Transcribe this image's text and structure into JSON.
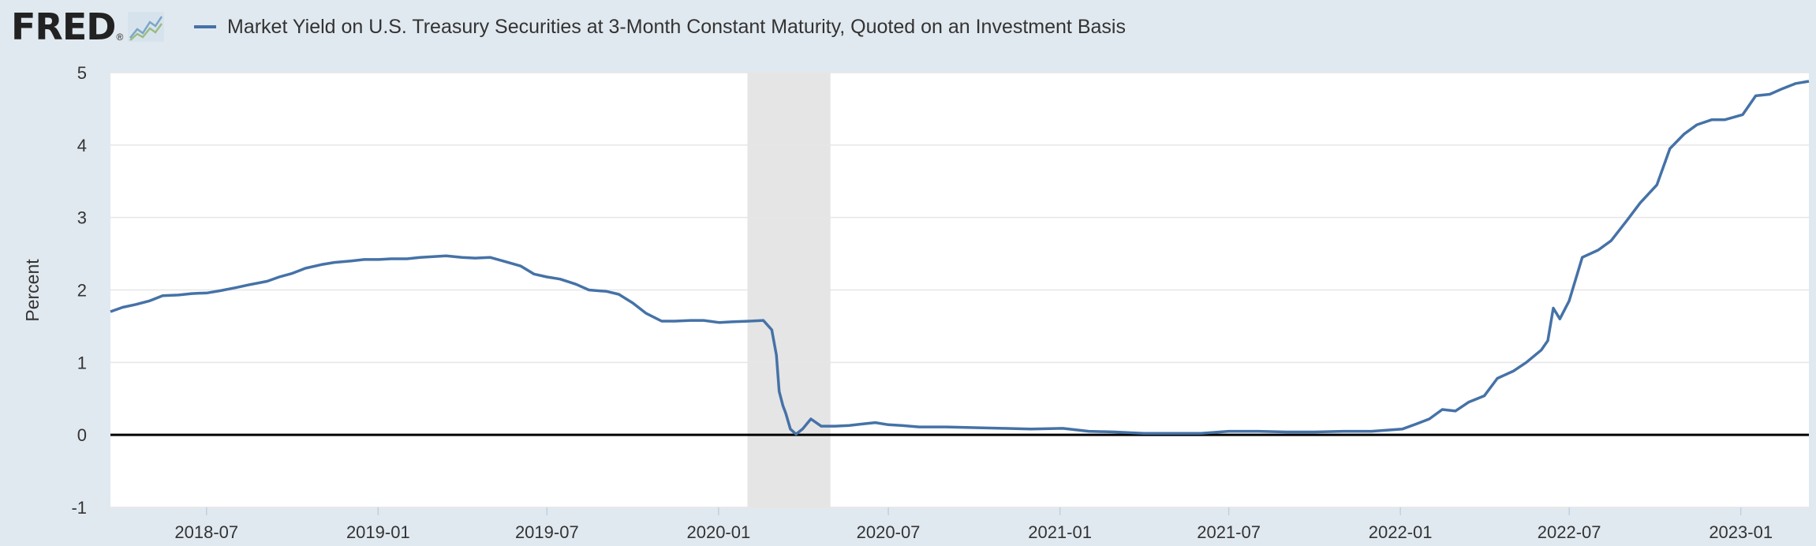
{
  "header": {
    "logo_text": "FRED",
    "logo_mark": "®",
    "logo_icon": "line-chart-icon"
  },
  "colors": {
    "series": "#4572a7",
    "recession": "#e5e5e5",
    "zero_line": "#000000",
    "grid": "#e6e6e6",
    "background": "#e1e9f0"
  },
  "chart_data": {
    "type": "line",
    "title": "",
    "xlabel": "",
    "ylabel": "Percent",
    "ylim": [
      -1,
      5
    ],
    "xlim": [
      "2018-03-20",
      "2023-03-15"
    ],
    "yticks": [
      -1,
      0,
      1,
      2,
      3,
      4,
      5
    ],
    "xticks": [
      "2018-07",
      "2019-01",
      "2019-07",
      "2020-01",
      "2020-07",
      "2021-01",
      "2021-07",
      "2022-01",
      "2022-07",
      "2023-01"
    ],
    "grid": true,
    "legend_position": "top-left",
    "recession": {
      "start": "2020-02-01",
      "end": "2020-04-30"
    },
    "series": [
      {
        "name": "Market Yield on U.S. Treasury Securities at 3-Month Constant Maturity, Quoted on an Investment Basis",
        "points": [
          [
            "2018-03-20",
            1.7
          ],
          [
            "2018-04-02",
            1.76
          ],
          [
            "2018-04-16",
            1.8
          ],
          [
            "2018-05-01",
            1.85
          ],
          [
            "2018-05-15",
            1.92
          ],
          [
            "2018-06-01",
            1.93
          ],
          [
            "2018-06-15",
            1.95
          ],
          [
            "2018-07-02",
            1.96
          ],
          [
            "2018-07-16",
            1.99
          ],
          [
            "2018-08-01",
            2.03
          ],
          [
            "2018-08-15",
            2.07
          ],
          [
            "2018-09-04",
            2.12
          ],
          [
            "2018-09-17",
            2.18
          ],
          [
            "2018-10-01",
            2.23
          ],
          [
            "2018-10-15",
            2.3
          ],
          [
            "2018-11-01",
            2.35
          ],
          [
            "2018-11-15",
            2.38
          ],
          [
            "2018-12-03",
            2.4
          ],
          [
            "2018-12-17",
            2.42
          ],
          [
            "2019-01-02",
            2.42
          ],
          [
            "2019-01-15",
            2.43
          ],
          [
            "2019-02-01",
            2.43
          ],
          [
            "2019-02-15",
            2.45
          ],
          [
            "2019-03-01",
            2.46
          ],
          [
            "2019-03-15",
            2.47
          ],
          [
            "2019-04-01",
            2.45
          ],
          [
            "2019-04-15",
            2.44
          ],
          [
            "2019-05-01",
            2.45
          ],
          [
            "2019-05-15",
            2.4
          ],
          [
            "2019-06-03",
            2.33
          ],
          [
            "2019-06-17",
            2.22
          ],
          [
            "2019-07-01",
            2.18
          ],
          [
            "2019-07-15",
            2.15
          ],
          [
            "2019-08-01",
            2.08
          ],
          [
            "2019-08-15",
            2.0
          ],
          [
            "2019-09-03",
            1.98
          ],
          [
            "2019-09-16",
            1.94
          ],
          [
            "2019-10-01",
            1.82
          ],
          [
            "2019-10-15",
            1.68
          ],
          [
            "2019-11-01",
            1.57
          ],
          [
            "2019-11-15",
            1.57
          ],
          [
            "2019-12-02",
            1.58
          ],
          [
            "2019-12-16",
            1.58
          ],
          [
            "2020-01-02",
            1.55
          ],
          [
            "2020-01-15",
            1.56
          ],
          [
            "2020-02-03",
            1.57
          ],
          [
            "2020-02-18",
            1.58
          ],
          [
            "2020-02-27",
            1.45
          ],
          [
            "2020-03-03",
            1.1
          ],
          [
            "2020-03-06",
            0.6
          ],
          [
            "2020-03-10",
            0.4
          ],
          [
            "2020-03-13",
            0.3
          ],
          [
            "2020-03-18",
            0.08
          ],
          [
            "2020-03-24",
            0.01
          ],
          [
            "2020-03-31",
            0.08
          ],
          [
            "2020-04-09",
            0.22
          ],
          [
            "2020-04-20",
            0.12
          ],
          [
            "2020-05-05",
            0.12
          ],
          [
            "2020-05-20",
            0.13
          ],
          [
            "2020-06-03",
            0.15
          ],
          [
            "2020-06-17",
            0.17
          ],
          [
            "2020-07-01",
            0.14
          ],
          [
            "2020-07-15",
            0.13
          ],
          [
            "2020-08-03",
            0.11
          ],
          [
            "2020-09-01",
            0.11
          ],
          [
            "2020-10-01",
            0.1
          ],
          [
            "2020-11-02",
            0.09
          ],
          [
            "2020-12-01",
            0.08
          ],
          [
            "2021-01-04",
            0.09
          ],
          [
            "2021-02-01",
            0.05
          ],
          [
            "2021-03-01",
            0.04
          ],
          [
            "2021-04-01",
            0.02
          ],
          [
            "2021-05-03",
            0.02
          ],
          [
            "2021-06-01",
            0.02
          ],
          [
            "2021-07-01",
            0.05
          ],
          [
            "2021-08-02",
            0.05
          ],
          [
            "2021-09-01",
            0.04
          ],
          [
            "2021-10-01",
            0.04
          ],
          [
            "2021-11-01",
            0.05
          ],
          [
            "2021-12-01",
            0.05
          ],
          [
            "2022-01-03",
            0.08
          ],
          [
            "2022-01-18",
            0.15
          ],
          [
            "2022-02-01",
            0.22
          ],
          [
            "2022-02-15",
            0.35
          ],
          [
            "2022-03-01",
            0.33
          ],
          [
            "2022-03-15",
            0.45
          ],
          [
            "2022-04-01",
            0.54
          ],
          [
            "2022-04-15",
            0.78
          ],
          [
            "2022-05-02",
            0.88
          ],
          [
            "2022-05-16",
            1.0
          ],
          [
            "2022-06-01",
            1.17
          ],
          [
            "2022-06-08",
            1.3
          ],
          [
            "2022-06-14",
            1.75
          ],
          [
            "2022-06-21",
            1.6
          ],
          [
            "2022-07-01",
            1.85
          ],
          [
            "2022-07-15",
            2.45
          ],
          [
            "2022-08-01",
            2.55
          ],
          [
            "2022-08-15",
            2.68
          ],
          [
            "2022-09-01",
            2.96
          ],
          [
            "2022-09-15",
            3.2
          ],
          [
            "2022-10-03",
            3.45
          ],
          [
            "2022-10-17",
            3.95
          ],
          [
            "2022-11-01",
            4.15
          ],
          [
            "2022-11-15",
            4.28
          ],
          [
            "2022-12-01",
            4.35
          ],
          [
            "2022-12-15",
            4.35
          ],
          [
            "2023-01-03",
            4.42
          ],
          [
            "2023-01-17",
            4.68
          ],
          [
            "2023-02-01",
            4.7
          ],
          [
            "2023-02-15",
            4.78
          ],
          [
            "2023-03-01",
            4.85
          ],
          [
            "2023-03-15",
            4.88
          ]
        ]
      }
    ]
  }
}
